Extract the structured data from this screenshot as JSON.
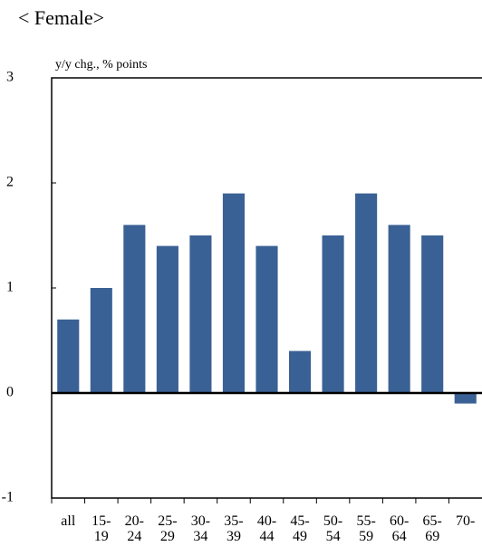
{
  "chart_data": {
    "type": "bar",
    "title": "< Female>",
    "y_label": "y/y chg., % points",
    "categories": [
      "all",
      "15-19",
      "20-24",
      "25-29",
      "30-34",
      "35-39",
      "40-44",
      "45-49",
      "50-54",
      "55-59",
      "60-64",
      "65-69",
      "70-"
    ],
    "values": [
      0.7,
      1.0,
      1.6,
      1.4,
      1.5,
      1.9,
      1.4,
      0.4,
      1.5,
      1.9,
      1.6,
      1.5,
      -0.1
    ],
    "color": "#3a6195",
    "ylim": [
      -1,
      3
    ],
    "yticks": [
      -1,
      0,
      1,
      2,
      3
    ],
    "grid": false
  }
}
